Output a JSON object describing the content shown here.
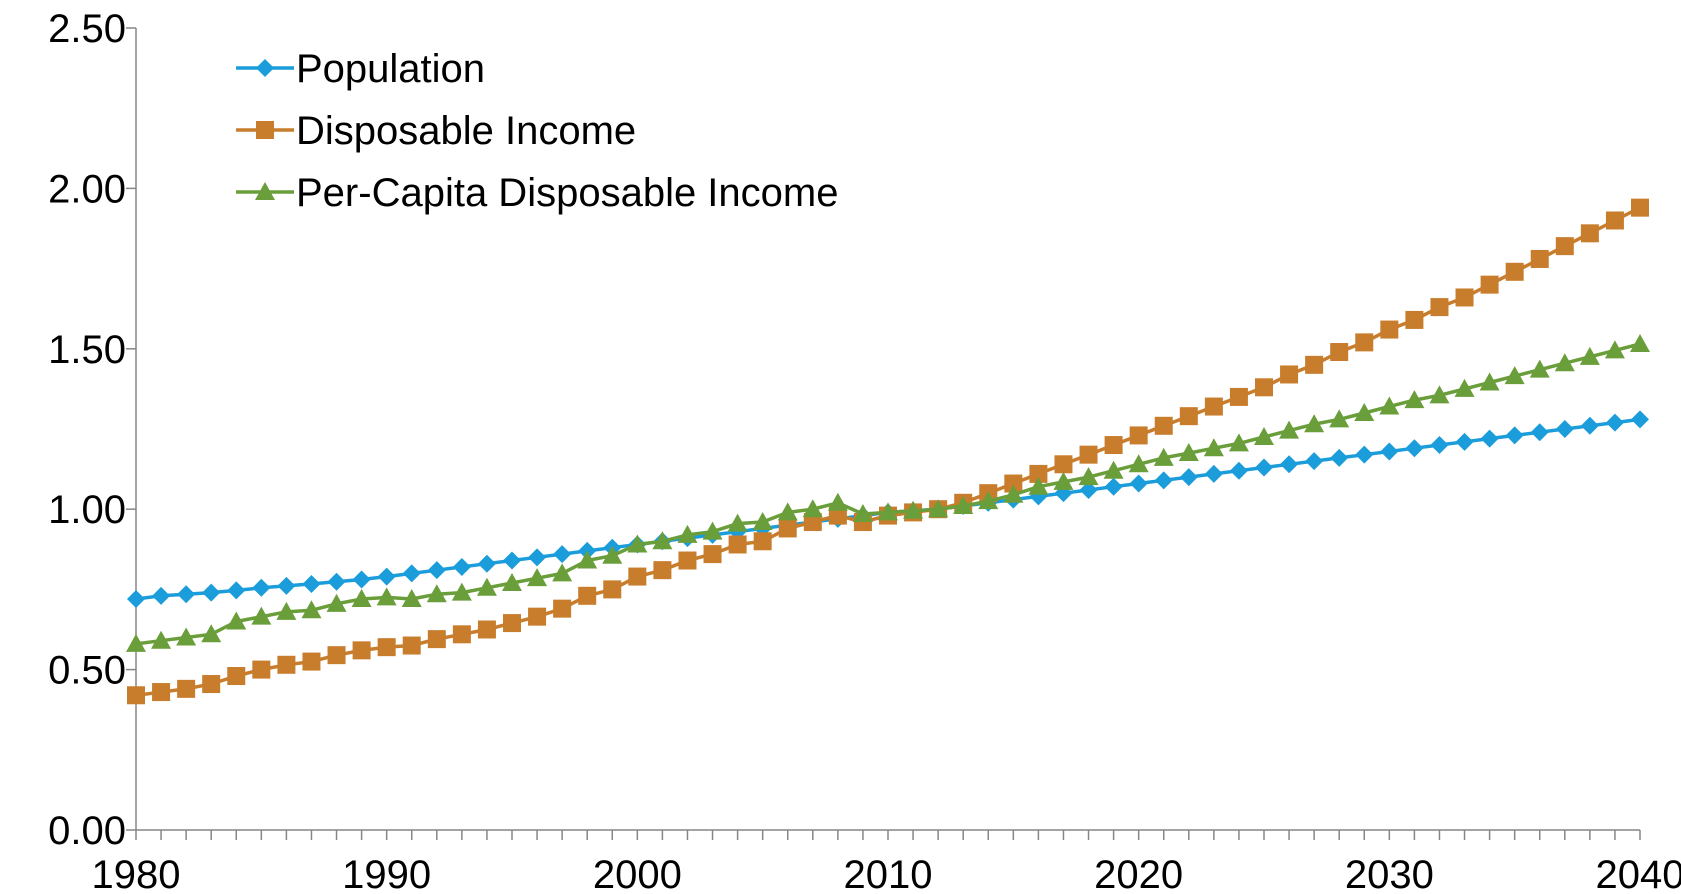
{
  "chart_data": {
    "type": "line",
    "title": "",
    "xlabel": "",
    "ylabel": "",
    "xlim": [
      1980,
      2040
    ],
    "ylim": [
      0,
      2.5
    ],
    "x_ticks": [
      "1980",
      "1990",
      "2000",
      "2010",
      "2020",
      "2030",
      "2040"
    ],
    "y_ticks": [
      "0.00",
      "0.50",
      "1.00",
      "1.50",
      "2.00",
      "2.50"
    ],
    "grid": false,
    "legend_position": "top-left",
    "x": [
      1980,
      1981,
      1982,
      1983,
      1984,
      1985,
      1986,
      1987,
      1988,
      1989,
      1990,
      1991,
      1992,
      1993,
      1994,
      1995,
      1996,
      1997,
      1998,
      1999,
      2000,
      2001,
      2002,
      2003,
      2004,
      2005,
      2006,
      2007,
      2008,
      2009,
      2010,
      2011,
      2012,
      2013,
      2014,
      2015,
      2016,
      2017,
      2018,
      2019,
      2020,
      2021,
      2022,
      2023,
      2024,
      2025,
      2026,
      2027,
      2028,
      2029,
      2030,
      2031,
      2032,
      2033,
      2034,
      2035,
      2036,
      2037,
      2038,
      2039,
      2040
    ],
    "series": [
      {
        "name": "Population",
        "color": "#1B9DDB",
        "marker": "diamond",
        "values": [
          0.72,
          0.73,
          0.735,
          0.74,
          0.747,
          0.755,
          0.761,
          0.767,
          0.774,
          0.781,
          0.79,
          0.8,
          0.81,
          0.82,
          0.83,
          0.84,
          0.85,
          0.86,
          0.87,
          0.88,
          0.89,
          0.9,
          0.91,
          0.92,
          0.93,
          0.94,
          0.95,
          0.96,
          0.97,
          0.98,
          0.99,
          0.995,
          1.0,
          1.01,
          1.02,
          1.03,
          1.04,
          1.05,
          1.06,
          1.07,
          1.08,
          1.09,
          1.1,
          1.11,
          1.12,
          1.13,
          1.14,
          1.15,
          1.16,
          1.17,
          1.18,
          1.19,
          1.2,
          1.21,
          1.22,
          1.23,
          1.24,
          1.25,
          1.26,
          1.27,
          1.28
        ]
      },
      {
        "name": "Disposable Income",
        "color": "#C87D2C",
        "marker": "square",
        "values": [
          0.42,
          0.43,
          0.44,
          0.455,
          0.48,
          0.5,
          0.515,
          0.525,
          0.545,
          0.56,
          0.57,
          0.575,
          0.595,
          0.61,
          0.625,
          0.645,
          0.665,
          0.69,
          0.73,
          0.75,
          0.79,
          0.81,
          0.84,
          0.86,
          0.89,
          0.9,
          0.94,
          0.96,
          0.98,
          0.96,
          0.98,
          0.99,
          1.0,
          1.02,
          1.05,
          1.08,
          1.11,
          1.14,
          1.17,
          1.2,
          1.23,
          1.26,
          1.29,
          1.32,
          1.35,
          1.38,
          1.42,
          1.45,
          1.49,
          1.52,
          1.56,
          1.59,
          1.63,
          1.66,
          1.7,
          1.74,
          1.78,
          1.82,
          1.86,
          1.9,
          1.94
        ]
      },
      {
        "name": "Per-Capita Disposable Income",
        "color": "#6A9E3A",
        "marker": "triangle",
        "values": [
          0.58,
          0.59,
          0.6,
          0.61,
          0.65,
          0.665,
          0.68,
          0.685,
          0.705,
          0.72,
          0.725,
          0.72,
          0.735,
          0.74,
          0.755,
          0.77,
          0.785,
          0.8,
          0.84,
          0.855,
          0.89,
          0.9,
          0.92,
          0.93,
          0.955,
          0.96,
          0.99,
          1.0,
          1.02,
          0.985,
          0.99,
          0.995,
          1.0,
          1.01,
          1.025,
          1.045,
          1.07,
          1.085,
          1.1,
          1.12,
          1.14,
          1.16,
          1.175,
          1.19,
          1.205,
          1.225,
          1.245,
          1.265,
          1.28,
          1.3,
          1.32,
          1.34,
          1.355,
          1.375,
          1.395,
          1.415,
          1.435,
          1.455,
          1.475,
          1.495,
          1.515
        ]
      }
    ]
  }
}
